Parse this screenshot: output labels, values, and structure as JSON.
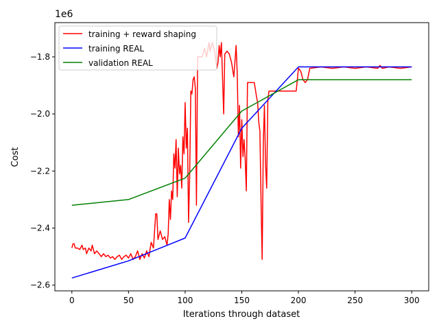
{
  "chart_data": {
    "type": "line",
    "title": "",
    "xlabel": "Iterations through dataset",
    "ylabel": "Cost",
    "offset_label": "1e6",
    "xlim": [
      -15,
      315
    ],
    "ylim": [
      -2.62,
      -1.68
    ],
    "x_ticks": [
      0,
      50,
      100,
      150,
      200,
      250,
      300
    ],
    "x_tick_labels": [
      "0",
      "50",
      "100",
      "150",
      "200",
      "250",
      "300"
    ],
    "y_ticks": [
      -2.6,
      -2.4,
      -2.2,
      -2.0,
      -1.8
    ],
    "y_tick_labels": [
      "−2.6",
      "−2.4",
      "−2.2",
      "−2.0",
      "−1.8"
    ],
    "legend_position": "top-left",
    "grid": false,
    "series": [
      {
        "name": "training + reward shaping",
        "color": "#ff0000",
        "points": [
          [
            0,
            -2.47
          ],
          [
            1,
            -2.455
          ],
          [
            2,
            -2.455
          ],
          [
            3,
            -2.47
          ],
          [
            5,
            -2.47
          ],
          [
            7,
            -2.475
          ],
          [
            9,
            -2.46
          ],
          [
            10,
            -2.475
          ],
          [
            12,
            -2.47
          ],
          [
            13,
            -2.49
          ],
          [
            15,
            -2.47
          ],
          [
            17,
            -2.48
          ],
          [
            18,
            -2.46
          ],
          [
            20,
            -2.49
          ],
          [
            22,
            -2.48
          ],
          [
            24,
            -2.49
          ],
          [
            26,
            -2.5
          ],
          [
            28,
            -2.49
          ],
          [
            30,
            -2.5
          ],
          [
            32,
            -2.495
          ],
          [
            34,
            -2.505
          ],
          [
            36,
            -2.5
          ],
          [
            38,
            -2.51
          ],
          [
            40,
            -2.5
          ],
          [
            42,
            -2.495
          ],
          [
            44,
            -2.51
          ],
          [
            46,
            -2.5
          ],
          [
            48,
            -2.495
          ],
          [
            50,
            -2.505
          ],
          [
            52,
            -2.49
          ],
          [
            54,
            -2.51
          ],
          [
            56,
            -2.5
          ],
          [
            58,
            -2.48
          ],
          [
            60,
            -2.51
          ],
          [
            62,
            -2.49
          ],
          [
            64,
            -2.505
          ],
          [
            66,
            -2.48
          ],
          [
            68,
            -2.5
          ],
          [
            70,
            -2.45
          ],
          [
            72,
            -2.47
          ],
          [
            74,
            -2.35
          ],
          [
            75,
            -2.35
          ],
          [
            76,
            -2.44
          ],
          [
            78,
            -2.41
          ],
          [
            80,
            -2.44
          ],
          [
            82,
            -2.43
          ],
          [
            84,
            -2.46
          ],
          [
            85,
            -2.42
          ],
          [
            86,
            -2.3
          ],
          [
            87,
            -2.37
          ],
          [
            88,
            -2.27
          ],
          [
            89,
            -2.3
          ],
          [
            90,
            -2.14
          ],
          [
            91,
            -2.19
          ],
          [
            92,
            -2.09
          ],
          [
            93,
            -2.29
          ],
          [
            94,
            -2.12
          ],
          [
            95,
            -2.21
          ],
          [
            96,
            -2.18
          ],
          [
            97,
            -2.26
          ],
          [
            98,
            -2.08
          ],
          [
            99,
            -2.14
          ],
          [
            100,
            -1.96
          ],
          [
            101,
            -2.12
          ],
          [
            102,
            -2.05
          ],
          [
            103,
            -2.38
          ],
          [
            104,
            -2.22
          ],
          [
            105,
            -1.92
          ],
          [
            106,
            -1.93
          ],
          [
            107,
            -1.88
          ],
          [
            108,
            -1.87
          ],
          [
            109,
            -1.91
          ],
          [
            110,
            -2.32
          ],
          [
            111,
            -1.8
          ],
          [
            115,
            -1.8
          ],
          [
            117,
            -1.77
          ],
          [
            119,
            -1.8
          ],
          [
            121,
            -1.75
          ],
          [
            122,
            -1.78
          ],
          [
            124,
            -1.75
          ],
          [
            126,
            -1.78
          ],
          [
            128,
            -1.84
          ],
          [
            129,
            -1.82
          ],
          [
            130,
            -1.76
          ],
          [
            131,
            -1.8
          ],
          [
            132,
            -1.75
          ],
          [
            134,
            -2.0
          ],
          [
            135,
            -1.79
          ],
          [
            137,
            -1.78
          ],
          [
            139,
            -1.79
          ],
          [
            141,
            -1.82
          ],
          [
            143,
            -1.87
          ],
          [
            145,
            -1.76
          ],
          [
            146,
            -1.86
          ],
          [
            147,
            -2.08
          ],
          [
            148,
            -1.97
          ],
          [
            149,
            -2.19
          ],
          [
            150,
            -2.02
          ],
          [
            151,
            -2.15
          ],
          [
            152,
            -2.09
          ],
          [
            153,
            -2.16
          ],
          [
            154,
            -2.27
          ],
          [
            155,
            -1.89
          ],
          [
            158,
            -1.89
          ],
          [
            161,
            -1.89
          ],
          [
            163,
            -1.94
          ],
          [
            164,
            -1.96
          ],
          [
            165,
            -2.03
          ],
          [
            166,
            -2.06
          ],
          [
            167,
            -2.31
          ],
          [
            168,
            -2.51
          ],
          [
            169,
            -2.1
          ],
          [
            170,
            -1.97
          ],
          [
            171,
            -2.18
          ],
          [
            172,
            -2.26
          ],
          [
            173,
            -1.95
          ],
          [
            174,
            -1.92
          ],
          [
            178,
            -1.92
          ],
          [
            182,
            -1.92
          ],
          [
            190,
            -1.92
          ],
          [
            194,
            -1.92
          ],
          [
            198,
            -1.92
          ],
          [
            200,
            -1.84
          ],
          [
            202,
            -1.85
          ],
          [
            204,
            -1.88
          ],
          [
            206,
            -1.89
          ],
          [
            208,
            -1.88
          ],
          [
            210,
            -1.84
          ],
          [
            220,
            -1.835
          ],
          [
            230,
            -1.84
          ],
          [
            240,
            -1.835
          ],
          [
            250,
            -1.84
          ],
          [
            260,
            -1.835
          ],
          [
            270,
            -1.84
          ],
          [
            272,
            -1.83
          ],
          [
            274,
            -1.84
          ],
          [
            280,
            -1.835
          ],
          [
            290,
            -1.84
          ],
          [
            300,
            -1.835
          ]
        ]
      },
      {
        "name": "training REAL",
        "color": "#0000ff",
        "points": [
          [
            0,
            -2.575
          ],
          [
            50,
            -2.515
          ],
          [
            100,
            -2.435
          ],
          [
            150,
            -2.05
          ],
          [
            200,
            -1.835
          ],
          [
            300,
            -1.835
          ]
        ]
      },
      {
        "name": "validation REAL",
        "color": "#008000",
        "points": [
          [
            0,
            -2.32
          ],
          [
            50,
            -2.3
          ],
          [
            100,
            -2.225
          ],
          [
            150,
            -1.99
          ],
          [
            200,
            -1.88
          ],
          [
            300,
            -1.88
          ]
        ]
      }
    ]
  }
}
